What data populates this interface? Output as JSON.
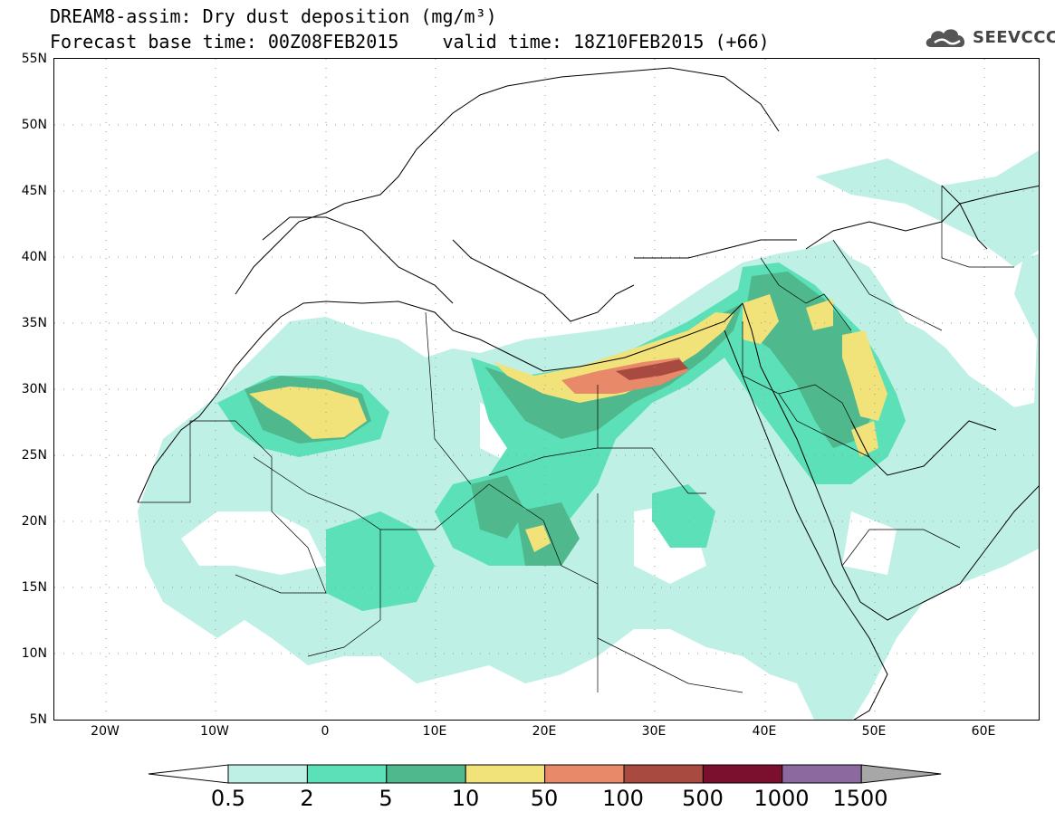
{
  "title": {
    "line1": "DREAM8-assim: Dry dust deposition (mg/m³)",
    "line2": "Forecast base time: 00Z08FEB2015    valid time: 18Z10FEB2015 (+66)"
  },
  "logo": {
    "text": "SEEVCCC",
    "icon": "cloud-logo-icon"
  },
  "map": {
    "type": "filled-contour-map",
    "region": "North Africa, Europe and Middle East",
    "lon_range": [
      -25,
      65
    ],
    "lat_range": [
      5,
      55
    ],
    "lat_labels": [
      "55N",
      "50N",
      "45N",
      "40N",
      "35N",
      "30N",
      "25N",
      "20N",
      "15N",
      "10N",
      "5N"
    ],
    "lon_labels": [
      "20W",
      "10W",
      "0",
      "10E",
      "20E",
      "30E",
      "40E",
      "50E",
      "60E"
    ],
    "grid": "dotted"
  },
  "colorbar": {
    "labels": [
      "0.5",
      "2",
      "5",
      "10",
      "50",
      "100",
      "500",
      "1000",
      "1500"
    ],
    "colors": [
      "#bff0e6",
      "#5ce0b8",
      "#4fb98d",
      "#f2e27a",
      "#e8896a",
      "#a84a3f",
      "#7a0f2e",
      "#8c6aa0",
      "#a7a7a7"
    ],
    "extend": "both"
  }
}
